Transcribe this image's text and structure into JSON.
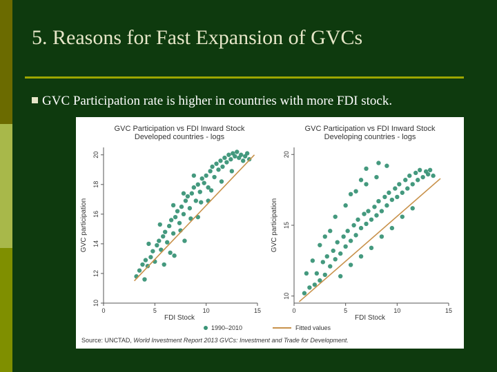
{
  "slide": {
    "title": "5. Reasons for Fast Expansion of  GVCs",
    "bullet": "GVC Participation rate is higher in countries with more FDI stock."
  },
  "colors": {
    "background": "#0e3a0e",
    "points": "#3a9477",
    "fitted": "#c8914a"
  },
  "legend": {
    "points_label": "1990–2010",
    "fitted_label": "Fitted values"
  },
  "source_text": {
    "prefix": "Source: UNCTAD, ",
    "report1": "World Investment Report 2013",
    "separator": "  ",
    "report2": "GVCs: Investment and Trade for Development."
  },
  "chart_data": [
    {
      "type": "scatter",
      "title": "GVC Participation vs FDI Inward Stock",
      "subtitle": "Developed countries - logs",
      "xlabel": "FDI Stock",
      "ylabel": "GVC participation",
      "xlim": [
        0,
        15
      ],
      "ylim": [
        10,
        20.5
      ],
      "xticks": [
        0,
        5,
        10,
        15
      ],
      "yticks": [
        10,
        12,
        14,
        16,
        18,
        20
      ],
      "fit": {
        "x": [
          3,
          14.7
        ],
        "y": [
          11.5,
          20
        ]
      },
      "series": [
        {
          "values": [
            [
              3.5,
              12.2
            ],
            [
              3.8,
              12.6
            ],
            [
              4.1,
              12.9
            ],
            [
              4.3,
              12.5
            ],
            [
              4.6,
              13.1
            ],
            [
              4.8,
              13.5
            ],
            [
              5.0,
              12.8
            ],
            [
              5.2,
              13.9
            ],
            [
              5.4,
              14.2
            ],
            [
              5.6,
              13.6
            ],
            [
              5.8,
              14.5
            ],
            [
              6.0,
              14.8
            ],
            [
              6.2,
              14.1
            ],
            [
              6.4,
              15.2
            ],
            [
              6.6,
              15.6
            ],
            [
              6.8,
              14.7
            ],
            [
              7.0,
              15.8
            ],
            [
              7.2,
              16.2
            ],
            [
              7.4,
              15.4
            ],
            [
              7.6,
              16.5
            ],
            [
              7.8,
              16.0
            ],
            [
              8.0,
              16.9
            ],
            [
              8.2,
              17.2
            ],
            [
              8.4,
              16.4
            ],
            [
              8.6,
              17.4
            ],
            [
              8.8,
              17.8
            ],
            [
              9.0,
              16.9
            ],
            [
              9.2,
              18.0
            ],
            [
              9.4,
              17.5
            ],
            [
              9.6,
              18.4
            ],
            [
              9.8,
              18.1
            ],
            [
              10.0,
              18.6
            ],
            [
              10.2,
              17.8
            ],
            [
              10.4,
              18.9
            ],
            [
              10.6,
              19.2
            ],
            [
              10.8,
              18.5
            ],
            [
              11.0,
              19.4
            ],
            [
              11.2,
              19.0
            ],
            [
              11.4,
              19.6
            ],
            [
              11.6,
              19.2
            ],
            [
              11.8,
              19.8
            ],
            [
              12.0,
              19.5
            ],
            [
              12.2,
              20.0
            ],
            [
              12.4,
              19.7
            ],
            [
              12.6,
              20.1
            ],
            [
              12.8,
              19.9
            ],
            [
              13.0,
              20.2
            ],
            [
              13.2,
              19.8
            ],
            [
              13.4,
              20.0
            ],
            [
              13.6,
              19.6
            ],
            [
              13.8,
              19.9
            ],
            [
              14.0,
              20.1
            ],
            [
              14.2,
              19.7
            ],
            [
              6.5,
              13.4
            ],
            [
              7.5,
              14.9
            ],
            [
              8.5,
              15.7
            ],
            [
              9.5,
              16.8
            ],
            [
              10.5,
              17.6
            ],
            [
              5.5,
              15.3
            ],
            [
              6.8,
              16.6
            ],
            [
              7.8,
              17.4
            ],
            [
              8.8,
              18.6
            ],
            [
              9.2,
              15.8
            ],
            [
              10.2,
              16.9
            ],
            [
              4.4,
              14.0
            ],
            [
              5.9,
              12.6
            ],
            [
              6.9,
              13.2
            ],
            [
              7.9,
              14.2
            ],
            [
              3.2,
              11.8
            ],
            [
              4.0,
              11.6
            ],
            [
              11.5,
              18.2
            ],
            [
              12.5,
              18.9
            ]
          ]
        }
      ]
    },
    {
      "type": "scatter",
      "title": "GVC Participation vs FDI Inward Stock",
      "subtitle": "Developing countries - logs",
      "xlabel": "FDI Stock",
      "ylabel": "GVC participation",
      "xlim": [
        0,
        15
      ],
      "ylim": [
        9.5,
        20.5
      ],
      "xticks": [
        0,
        5,
        10,
        15
      ],
      "yticks": [
        10,
        15,
        20
      ],
      "fit": {
        "x": [
          0.5,
          14.2
        ],
        "y": [
          9.6,
          18.3
        ]
      },
      "series": [
        {
          "values": [
            [
              1.0,
              10.2
            ],
            [
              1.5,
              10.6
            ],
            [
              2.0,
              10.8
            ],
            [
              2.2,
              11.6
            ],
            [
              2.5,
              11.1
            ],
            [
              2.8,
              12.4
            ],
            [
              3.0,
              11.5
            ],
            [
              3.2,
              12.8
            ],
            [
              3.5,
              12.1
            ],
            [
              3.8,
              13.2
            ],
            [
              4.0,
              12.6
            ],
            [
              4.2,
              13.8
            ],
            [
              4.5,
              13.0
            ],
            [
              4.8,
              14.2
            ],
            [
              5.0,
              13.5
            ],
            [
              5.2,
              14.6
            ],
            [
              5.5,
              13.9
            ],
            [
              5.8,
              15.0
            ],
            [
              6.0,
              14.3
            ],
            [
              6.2,
              15.4
            ],
            [
              6.5,
              14.8
            ],
            [
              6.8,
              15.8
            ],
            [
              7.0,
              15.1
            ],
            [
              7.2,
              16.0
            ],
            [
              7.5,
              15.4
            ],
            [
              7.8,
              16.3
            ],
            [
              8.0,
              15.7
            ],
            [
              8.2,
              16.7
            ],
            [
              8.5,
              16.0
            ],
            [
              8.8,
              17.0
            ],
            [
              9.0,
              16.4
            ],
            [
              9.2,
              17.3
            ],
            [
              9.5,
              16.8
            ],
            [
              9.8,
              17.6
            ],
            [
              10.0,
              17.0
            ],
            [
              10.2,
              17.9
            ],
            [
              10.5,
              17.3
            ],
            [
              10.8,
              18.2
            ],
            [
              11.0,
              17.6
            ],
            [
              11.2,
              18.5
            ],
            [
              11.5,
              17.9
            ],
            [
              11.8,
              18.7
            ],
            [
              12.0,
              18.2
            ],
            [
              12.2,
              18.9
            ],
            [
              12.5,
              18.4
            ],
            [
              12.8,
              18.8
            ],
            [
              13.0,
              18.6
            ],
            [
              13.2,
              18.9
            ],
            [
              13.5,
              18.5
            ],
            [
              3.0,
              14.2
            ],
            [
              4.0,
              15.6
            ],
            [
              5.0,
              16.4
            ],
            [
              6.0,
              17.4
            ],
            [
              7.0,
              17.9
            ],
            [
              8.0,
              18.4
            ],
            [
              5.5,
              17.2
            ],
            [
              6.5,
              18.2
            ],
            [
              4.5,
              11.4
            ],
            [
              5.5,
              12.2
            ],
            [
              6.5,
              12.8
            ],
            [
              7.5,
              13.4
            ],
            [
              8.5,
              14.2
            ],
            [
              9.5,
              14.8
            ],
            [
              10.5,
              15.6
            ],
            [
              2.5,
              13.6
            ],
            [
              3.5,
              14.6
            ],
            [
              1.8,
              12.5
            ],
            [
              7.0,
              19.0
            ],
            [
              8.2,
              19.4
            ],
            [
              9.0,
              19.2
            ],
            [
              1.2,
              11.6
            ],
            [
              11.5,
              16.2
            ]
          ]
        }
      ]
    }
  ]
}
